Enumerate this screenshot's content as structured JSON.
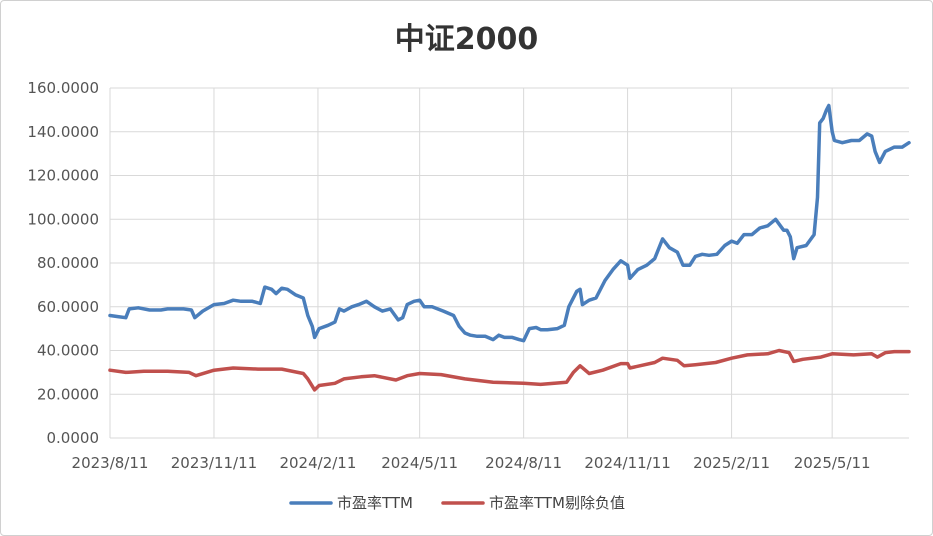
{
  "chart_data": {
    "type": "line",
    "title": "中证2000",
    "ylim": [
      0,
      160
    ],
    "y_ticks": [
      0,
      20,
      40,
      60,
      80,
      100,
      120,
      140,
      160
    ],
    "y_tick_labels": [
      "0.0000",
      "20.0000",
      "40.0000",
      "60.0000",
      "80.0000",
      "100.0000",
      "120.0000",
      "140.0000",
      "160.0000"
    ],
    "x_ticks": [
      "2023-08-11",
      "2023-11-11",
      "2024-02-11",
      "2024-05-11",
      "2024-08-11",
      "2024-11-11",
      "2025-02-11",
      "2025-05-11"
    ],
    "x_tick_labels": [
      "2023/8/11",
      "2023/11/11",
      "2024/2/11",
      "2024/5/11",
      "2024/8/11",
      "2024/11/11",
      "2025/2/11",
      "2025/5/11"
    ],
    "xlim": [
      "2023-08-11",
      "2025-07-18"
    ],
    "grid": "vertical and horizontal",
    "legend_position": "bottom",
    "series": [
      {
        "name": "市盈率TTM",
        "color": "#4a7ebb",
        "points": [
          [
            "2023-08-11",
            56
          ],
          [
            "2023-08-18",
            55.5
          ],
          [
            "2023-08-25",
            55
          ],
          [
            "2023-08-28",
            59
          ],
          [
            "2023-09-05",
            59.5
          ],
          [
            "2023-09-15",
            58.5
          ],
          [
            "2023-09-25",
            58.5
          ],
          [
            "2023-10-01",
            59
          ],
          [
            "2023-10-15",
            59
          ],
          [
            "2023-10-22",
            58.5
          ],
          [
            "2023-10-25",
            55
          ],
          [
            "2023-11-01",
            58
          ],
          [
            "2023-11-11",
            61
          ],
          [
            "2023-11-20",
            61.5
          ],
          [
            "2023-11-28",
            63
          ],
          [
            "2023-12-05",
            62.5
          ],
          [
            "2023-12-15",
            62.5
          ],
          [
            "2023-12-22",
            61.5
          ],
          [
            "2023-12-26",
            69
          ],
          [
            "2024-01-01",
            68
          ],
          [
            "2024-01-05",
            66
          ],
          [
            "2024-01-10",
            68.5
          ],
          [
            "2024-01-15",
            68
          ],
          [
            "2024-01-22",
            65.5
          ],
          [
            "2024-01-29",
            64
          ],
          [
            "2024-02-02",
            56
          ],
          [
            "2024-02-06",
            51
          ],
          [
            "2024-02-08",
            46
          ],
          [
            "2024-02-12",
            50
          ],
          [
            "2024-02-20",
            51.5
          ],
          [
            "2024-02-26",
            53
          ],
          [
            "2024-03-01",
            59
          ],
          [
            "2024-03-05",
            58
          ],
          [
            "2024-03-12",
            60
          ],
          [
            "2024-03-18",
            61
          ],
          [
            "2024-03-25",
            62.5
          ],
          [
            "2024-04-01",
            60
          ],
          [
            "2024-04-08",
            58
          ],
          [
            "2024-04-15",
            59
          ],
          [
            "2024-04-22",
            54
          ],
          [
            "2024-04-26",
            55
          ],
          [
            "2024-04-30",
            61
          ],
          [
            "2024-05-06",
            62.5
          ],
          [
            "2024-05-11",
            63
          ],
          [
            "2024-05-15",
            60
          ],
          [
            "2024-05-22",
            60
          ],
          [
            "2024-06-01",
            58
          ],
          [
            "2024-06-10",
            56
          ],
          [
            "2024-06-15",
            51
          ],
          [
            "2024-06-20",
            48
          ],
          [
            "2024-06-25",
            47
          ],
          [
            "2024-07-01",
            46.5
          ],
          [
            "2024-07-08",
            46.5
          ],
          [
            "2024-07-15",
            45
          ],
          [
            "2024-07-20",
            47
          ],
          [
            "2024-07-25",
            46
          ],
          [
            "2024-08-01",
            46
          ],
          [
            "2024-08-07",
            45
          ],
          [
            "2024-08-11",
            44.5
          ],
          [
            "2024-08-16",
            50
          ],
          [
            "2024-08-22",
            50.5
          ],
          [
            "2024-08-26",
            49.5
          ],
          [
            "2024-09-01",
            49.5
          ],
          [
            "2024-09-10",
            50
          ],
          [
            "2024-09-16",
            51.5
          ],
          [
            "2024-09-20",
            60
          ],
          [
            "2024-09-27",
            67
          ],
          [
            "2024-09-30",
            68
          ],
          [
            "2024-10-02",
            61
          ],
          [
            "2024-10-08",
            63
          ],
          [
            "2024-10-14",
            64
          ],
          [
            "2024-10-22",
            72
          ],
          [
            "2024-10-29",
            77
          ],
          [
            "2024-11-05",
            81
          ],
          [
            "2024-11-11",
            79
          ],
          [
            "2024-11-13",
            73
          ],
          [
            "2024-11-20",
            77
          ],
          [
            "2024-11-28",
            79
          ],
          [
            "2024-12-05",
            82
          ],
          [
            "2024-12-12",
            91
          ],
          [
            "2024-12-18",
            87
          ],
          [
            "2024-12-25",
            85
          ],
          [
            "2024-12-30",
            79
          ],
          [
            "2025-01-05",
            79
          ],
          [
            "2025-01-10",
            83
          ],
          [
            "2025-01-16",
            84
          ],
          [
            "2025-01-22",
            83.5
          ],
          [
            "2025-01-29",
            84
          ],
          [
            "2025-02-05",
            88
          ],
          [
            "2025-02-11",
            90
          ],
          [
            "2025-02-16",
            89
          ],
          [
            "2025-02-22",
            93
          ],
          [
            "2025-03-01",
            93
          ],
          [
            "2025-03-08",
            96
          ],
          [
            "2025-03-15",
            97
          ],
          [
            "2025-03-22",
            100
          ],
          [
            "2025-03-29",
            95
          ],
          [
            "2025-04-01",
            95
          ],
          [
            "2025-04-04",
            92
          ],
          [
            "2025-04-07",
            82
          ],
          [
            "2025-04-10",
            87
          ],
          [
            "2025-04-18",
            88
          ],
          [
            "2025-04-25",
            93
          ],
          [
            "2025-04-28",
            110
          ],
          [
            "2025-04-30",
            144
          ],
          [
            "2025-05-03",
            146
          ],
          [
            "2025-05-06",
            150
          ],
          [
            "2025-05-08",
            152
          ],
          [
            "2025-05-11",
            140
          ],
          [
            "2025-05-13",
            136
          ],
          [
            "2025-05-20",
            135
          ],
          [
            "2025-05-28",
            136
          ],
          [
            "2025-06-04",
            136
          ],
          [
            "2025-06-11",
            139
          ],
          [
            "2025-06-15",
            138
          ],
          [
            "2025-06-18",
            131
          ],
          [
            "2025-06-22",
            126
          ],
          [
            "2025-06-27",
            131
          ],
          [
            "2025-07-05",
            133
          ],
          [
            "2025-07-12",
            133
          ],
          [
            "2025-07-18",
            135
          ]
        ]
      },
      {
        "name": "市盈率TTM剔除负值",
        "color": "#c0504d",
        "points": [
          [
            "2023-08-11",
            31
          ],
          [
            "2023-08-25",
            30
          ],
          [
            "2023-09-10",
            30.5
          ],
          [
            "2023-10-01",
            30.5
          ],
          [
            "2023-10-20",
            30
          ],
          [
            "2023-10-26",
            28.5
          ],
          [
            "2023-11-11",
            31
          ],
          [
            "2023-11-28",
            32
          ],
          [
            "2023-12-20",
            31.5
          ],
          [
            "2024-01-10",
            31.5
          ],
          [
            "2024-01-29",
            29.5
          ],
          [
            "2024-02-02",
            27
          ],
          [
            "2024-02-08",
            22
          ],
          [
            "2024-02-12",
            24
          ],
          [
            "2024-02-26",
            25
          ],
          [
            "2024-03-05",
            27
          ],
          [
            "2024-03-20",
            28
          ],
          [
            "2024-04-01",
            28.5
          ],
          [
            "2024-04-20",
            26.5
          ],
          [
            "2024-04-30",
            28.5
          ],
          [
            "2024-05-11",
            29.5
          ],
          [
            "2024-05-30",
            29
          ],
          [
            "2024-06-20",
            27
          ],
          [
            "2024-07-15",
            25.5
          ],
          [
            "2024-08-11",
            25
          ],
          [
            "2024-08-26",
            24.5
          ],
          [
            "2024-09-18",
            25.5
          ],
          [
            "2024-09-24",
            30
          ],
          [
            "2024-09-30",
            33
          ],
          [
            "2024-10-08",
            29.5
          ],
          [
            "2024-10-20",
            31
          ],
          [
            "2024-11-05",
            34
          ],
          [
            "2024-11-11",
            34
          ],
          [
            "2024-11-13",
            32
          ],
          [
            "2024-12-05",
            34.5
          ],
          [
            "2024-12-12",
            36.5
          ],
          [
            "2024-12-25",
            35.5
          ],
          [
            "2024-12-31",
            33
          ],
          [
            "2025-01-10",
            33.5
          ],
          [
            "2025-01-28",
            34.5
          ],
          [
            "2025-02-11",
            36.5
          ],
          [
            "2025-02-25",
            38
          ],
          [
            "2025-03-15",
            38.5
          ],
          [
            "2025-03-25",
            40
          ],
          [
            "2025-04-03",
            39
          ],
          [
            "2025-04-07",
            35
          ],
          [
            "2025-04-15",
            36
          ],
          [
            "2025-05-01",
            37
          ],
          [
            "2025-05-11",
            38.5
          ],
          [
            "2025-05-30",
            38
          ],
          [
            "2025-06-15",
            38.5
          ],
          [
            "2025-06-20",
            37
          ],
          [
            "2025-06-27",
            39
          ],
          [
            "2025-07-05",
            39.5
          ],
          [
            "2025-07-18",
            39.5
          ]
        ]
      }
    ]
  }
}
